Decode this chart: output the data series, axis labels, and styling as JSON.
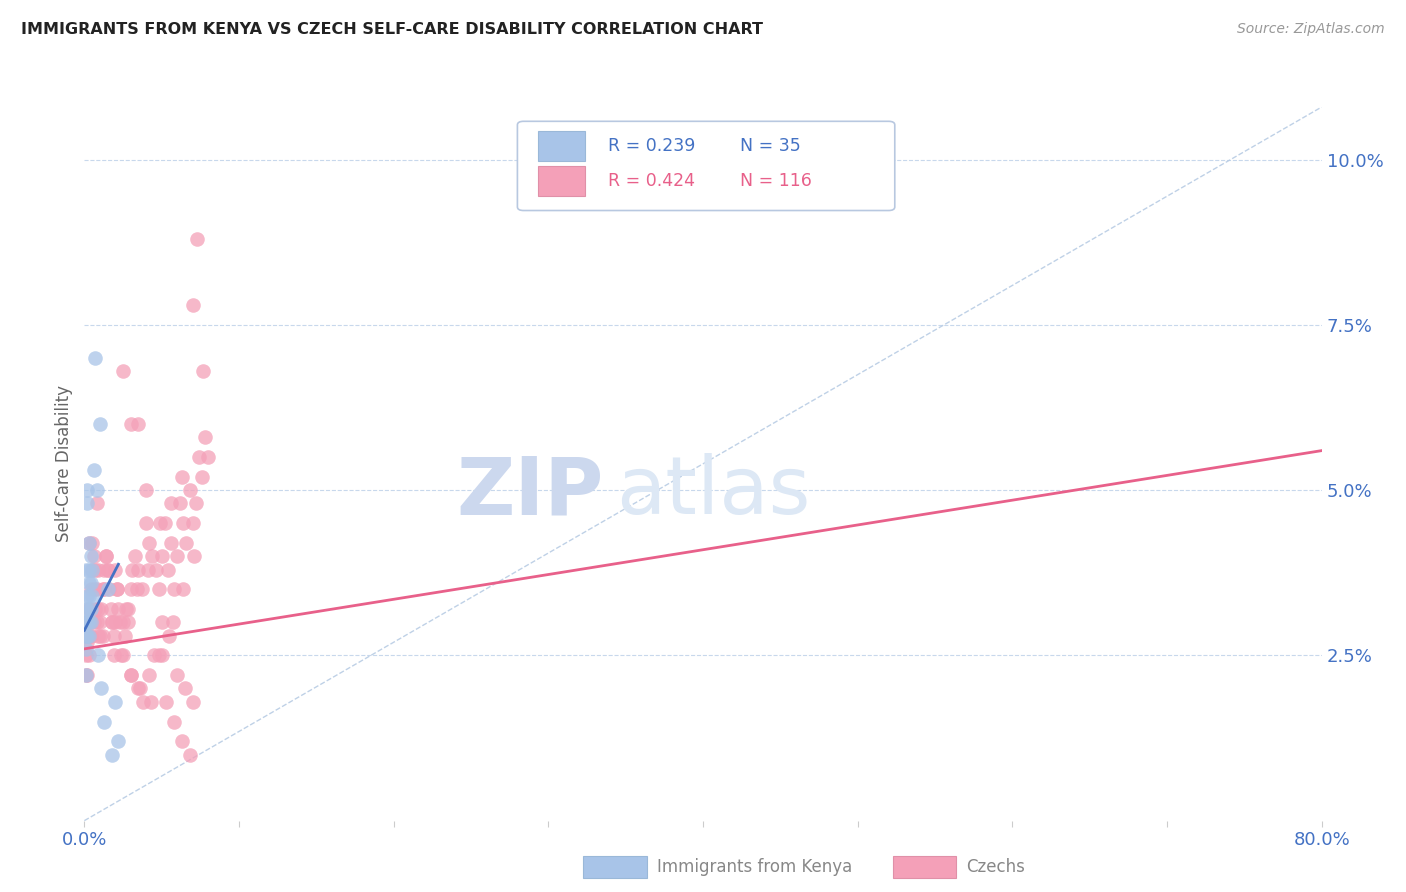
{
  "title": "IMMIGRANTS FROM KENYA VS CZECH SELF-CARE DISABILITY CORRELATION CHART",
  "source": "Source: ZipAtlas.com",
  "ylabel": "Self-Care Disability",
  "ytick_labels": [
    "2.5%",
    "5.0%",
    "7.5%",
    "10.0%"
  ],
  "ytick_values": [
    0.025,
    0.05,
    0.075,
    0.1
  ],
  "xlim": [
    0.0,
    0.8
  ],
  "ylim": [
    0.0,
    0.108
  ],
  "legend_kenya_r": "R = 0.239",
  "legend_kenya_n": "N = 35",
  "legend_czech_r": "R = 0.424",
  "legend_czech_n": "N = 116",
  "kenya_color": "#a8c4e8",
  "czech_color": "#f4a0b8",
  "kenya_line_color": "#4472c4",
  "czech_line_color": "#e8608a",
  "diagonal_color": "#b8cce4",
  "background_color": "#ffffff",
  "title_color": "#222222",
  "axis_label_color": "#4472c4",
  "watermark_zip_color": "#ccd8ee",
  "watermark_atlas_color": "#dde8f5",
  "kenya_scatter_x": [
    0.001,
    0.001,
    0.001,
    0.001,
    0.001,
    0.001,
    0.002,
    0.002,
    0.002,
    0.002,
    0.002,
    0.002,
    0.003,
    0.003,
    0.003,
    0.003,
    0.003,
    0.003,
    0.004,
    0.004,
    0.004,
    0.004,
    0.005,
    0.005,
    0.006,
    0.007,
    0.008,
    0.009,
    0.01,
    0.011,
    0.013,
    0.015,
    0.018,
    0.02,
    0.022
  ],
  "kenya_scatter_y": [
    0.028,
    0.03,
    0.032,
    0.026,
    0.022,
    0.038,
    0.03,
    0.032,
    0.028,
    0.034,
    0.048,
    0.05,
    0.03,
    0.034,
    0.036,
    0.038,
    0.028,
    0.042,
    0.032,
    0.036,
    0.04,
    0.03,
    0.034,
    0.038,
    0.053,
    0.07,
    0.05,
    0.025,
    0.06,
    0.02,
    0.015,
    0.035,
    0.01,
    0.018,
    0.012
  ],
  "czech_scatter_x": [
    0.001,
    0.001,
    0.001,
    0.002,
    0.002,
    0.002,
    0.003,
    0.003,
    0.003,
    0.004,
    0.004,
    0.004,
    0.005,
    0.005,
    0.006,
    0.006,
    0.007,
    0.007,
    0.008,
    0.008,
    0.009,
    0.009,
    0.01,
    0.01,
    0.011,
    0.012,
    0.013,
    0.014,
    0.015,
    0.016,
    0.017,
    0.018,
    0.019,
    0.02,
    0.021,
    0.022,
    0.023,
    0.025,
    0.026,
    0.028,
    0.03,
    0.031,
    0.033,
    0.035,
    0.037,
    0.04,
    0.042,
    0.044,
    0.046,
    0.048,
    0.05,
    0.052,
    0.054,
    0.056,
    0.058,
    0.06,
    0.062,
    0.064,
    0.066,
    0.068,
    0.07,
    0.072,
    0.074,
    0.076,
    0.078,
    0.08,
    0.025,
    0.03,
    0.035,
    0.04,
    0.045,
    0.05,
    0.055,
    0.06,
    0.065,
    0.07,
    0.015,
    0.02,
    0.025,
    0.03,
    0.035,
    0.038,
    0.042,
    0.048,
    0.053,
    0.058,
    0.063,
    0.068,
    0.073,
    0.009,
    0.013,
    0.018,
    0.024,
    0.03,
    0.036,
    0.043,
    0.05,
    0.057,
    0.064,
    0.071,
    0.006,
    0.012,
    0.019,
    0.027,
    0.034,
    0.041,
    0.049,
    0.056,
    0.063,
    0.07,
    0.077,
    0.003,
    0.008,
    0.014,
    0.021,
    0.028
  ],
  "czech_scatter_y": [
    0.025,
    0.028,
    0.022,
    0.03,
    0.022,
    0.027,
    0.028,
    0.032,
    0.025,
    0.03,
    0.035,
    0.028,
    0.038,
    0.042,
    0.04,
    0.035,
    0.038,
    0.032,
    0.035,
    0.03,
    0.032,
    0.028,
    0.03,
    0.028,
    0.032,
    0.035,
    0.038,
    0.04,
    0.038,
    0.035,
    0.032,
    0.03,
    0.028,
    0.038,
    0.035,
    0.032,
    0.03,
    0.03,
    0.028,
    0.032,
    0.035,
    0.038,
    0.04,
    0.038,
    0.035,
    0.045,
    0.042,
    0.04,
    0.038,
    0.035,
    0.04,
    0.045,
    0.038,
    0.042,
    0.035,
    0.04,
    0.048,
    0.045,
    0.042,
    0.05,
    0.045,
    0.048,
    0.055,
    0.052,
    0.058,
    0.055,
    0.068,
    0.06,
    0.06,
    0.05,
    0.025,
    0.03,
    0.028,
    0.022,
    0.02,
    0.018,
    0.038,
    0.03,
    0.025,
    0.022,
    0.02,
    0.018,
    0.022,
    0.025,
    0.018,
    0.015,
    0.012,
    0.01,
    0.088,
    0.038,
    0.035,
    0.03,
    0.025,
    0.022,
    0.02,
    0.018,
    0.025,
    0.03,
    0.035,
    0.04,
    0.03,
    0.028,
    0.025,
    0.032,
    0.035,
    0.038,
    0.045,
    0.048,
    0.052,
    0.078,
    0.068,
    0.042,
    0.048,
    0.04,
    0.035,
    0.03
  ],
  "kenya_line_x": [
    0.0,
    0.022
  ],
  "kenya_line_y": [
    0.0288,
    0.0388
  ],
  "czech_line_x": [
    0.0,
    0.8
  ],
  "czech_line_y": [
    0.026,
    0.056
  ],
  "diagonal_line_x": [
    0.0,
    0.8
  ],
  "diagonal_line_y": [
    0.0,
    0.108
  ]
}
